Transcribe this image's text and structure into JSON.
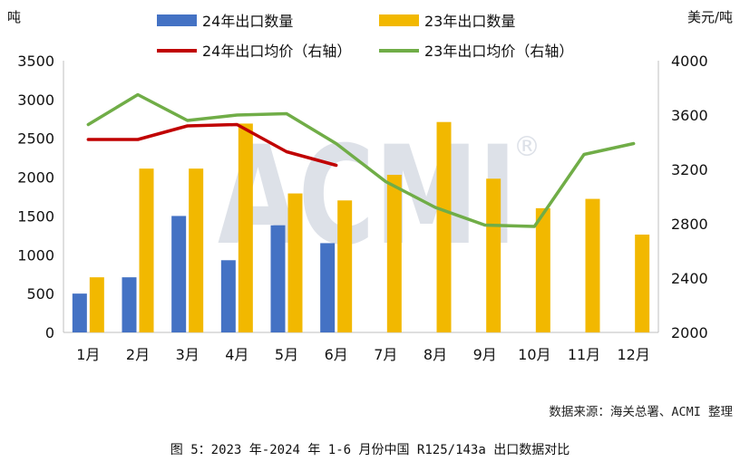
{
  "chart_data": {
    "type": "bar",
    "categories": [
      "1月",
      "2月",
      "3月",
      "4月",
      "5月",
      "6月",
      "7月",
      "8月",
      "9月",
      "10月",
      "11月",
      "12月"
    ],
    "series": [
      {
        "name": "24年出口数量",
        "type": "bar",
        "axis": "left",
        "color": "#4472C4",
        "values": [
          500,
          710,
          1500,
          930,
          1380,
          1150,
          null,
          null,
          null,
          null,
          null,
          null
        ]
      },
      {
        "name": "23年出口数量",
        "type": "bar",
        "axis": "left",
        "color": "#F2B800",
        "values": [
          710,
          2110,
          2110,
          2690,
          1790,
          1700,
          2030,
          2710,
          1980,
          1600,
          1720,
          1260
        ]
      },
      {
        "name": "24年出口均价（右轴）",
        "type": "line",
        "axis": "right",
        "color": "#C00000",
        "values": [
          3420,
          3420,
          3520,
          3530,
          3330,
          3230,
          null,
          null,
          null,
          null,
          null,
          null
        ]
      },
      {
        "name": "23年出口均价（右轴）",
        "type": "line",
        "axis": "right",
        "color": "#70AD47",
        "values": [
          3530,
          3750,
          3560,
          3600,
          3610,
          3390,
          3110,
          2920,
          2790,
          2780,
          3310,
          3390
        ]
      }
    ],
    "ylabel_left": "吨",
    "ylabel_right": "美元/吨",
    "ylim_left": [
      0,
      3500
    ],
    "yticks_left": [
      0,
      500,
      1000,
      1500,
      2000,
      2500,
      3000,
      3500
    ],
    "ylim_right": [
      2000,
      4000
    ],
    "yticks_right": [
      2000,
      2400,
      2800,
      3200,
      3600,
      4000
    ],
    "grid": false,
    "legend": "top",
    "watermark": "ACMI®"
  },
  "source": "数据来源：海关总署、ACMI 整理",
  "caption": "图 5：2023 年-2024 年 1-6 月份中国 R125/143a 出口数据对比"
}
